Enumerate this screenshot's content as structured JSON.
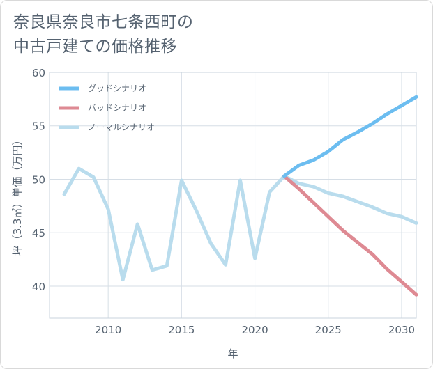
{
  "title_lines": [
    "奈良県奈良市七条西町の",
    "中古戸建ての価格推移"
  ],
  "chart_data": {
    "type": "line",
    "title": "奈良県奈良市七条西町の中古戸建ての価格推移",
    "xlabel": "年",
    "ylabel": "坪（3.3㎡）単価（万円）",
    "xlim": [
      2006,
      2031
    ],
    "ylim": [
      37,
      60
    ],
    "xticks": [
      2010,
      2015,
      2020,
      2025,
      2030
    ],
    "yticks": [
      40,
      45,
      50,
      55,
      60
    ],
    "grid": true,
    "legend_position": "top-left",
    "series": [
      {
        "name": "グッドシナリオ",
        "color": "#6cbdf0",
        "x": [
          2022,
          2023,
          2024,
          2025,
          2026,
          2027,
          2028,
          2029,
          2030,
          2031
        ],
        "values": [
          50.3,
          51.3,
          51.8,
          52.6,
          53.7,
          54.4,
          55.2,
          56.1,
          56.9,
          57.7
        ]
      },
      {
        "name": "バッドシナリオ",
        "color": "#de8a93",
        "x": [
          2022,
          2023,
          2024,
          2025,
          2026,
          2027,
          2028,
          2029,
          2030,
          2031
        ],
        "values": [
          50.3,
          49.1,
          47.8,
          46.5,
          45.2,
          44.1,
          43.0,
          41.6,
          40.4,
          39.2
        ]
      },
      {
        "name": "ノーマルシナリオ",
        "color": "#b9dced",
        "x": [
          2007,
          2008,
          2009,
          2010,
          2011,
          2012,
          2013,
          2014,
          2015,
          2016,
          2017,
          2018,
          2019,
          2020,
          2021,
          2022,
          2023,
          2024,
          2025,
          2026,
          2027,
          2028,
          2029,
          2030,
          2031
        ],
        "values": [
          48.6,
          51.0,
          50.2,
          47.2,
          40.6,
          45.8,
          41.5,
          41.9,
          49.9,
          47.1,
          44.0,
          42.0,
          49.9,
          42.6,
          48.8,
          50.3,
          49.6,
          49.3,
          48.7,
          48.4,
          47.9,
          47.4,
          46.8,
          46.5,
          45.9
        ]
      }
    ]
  }
}
